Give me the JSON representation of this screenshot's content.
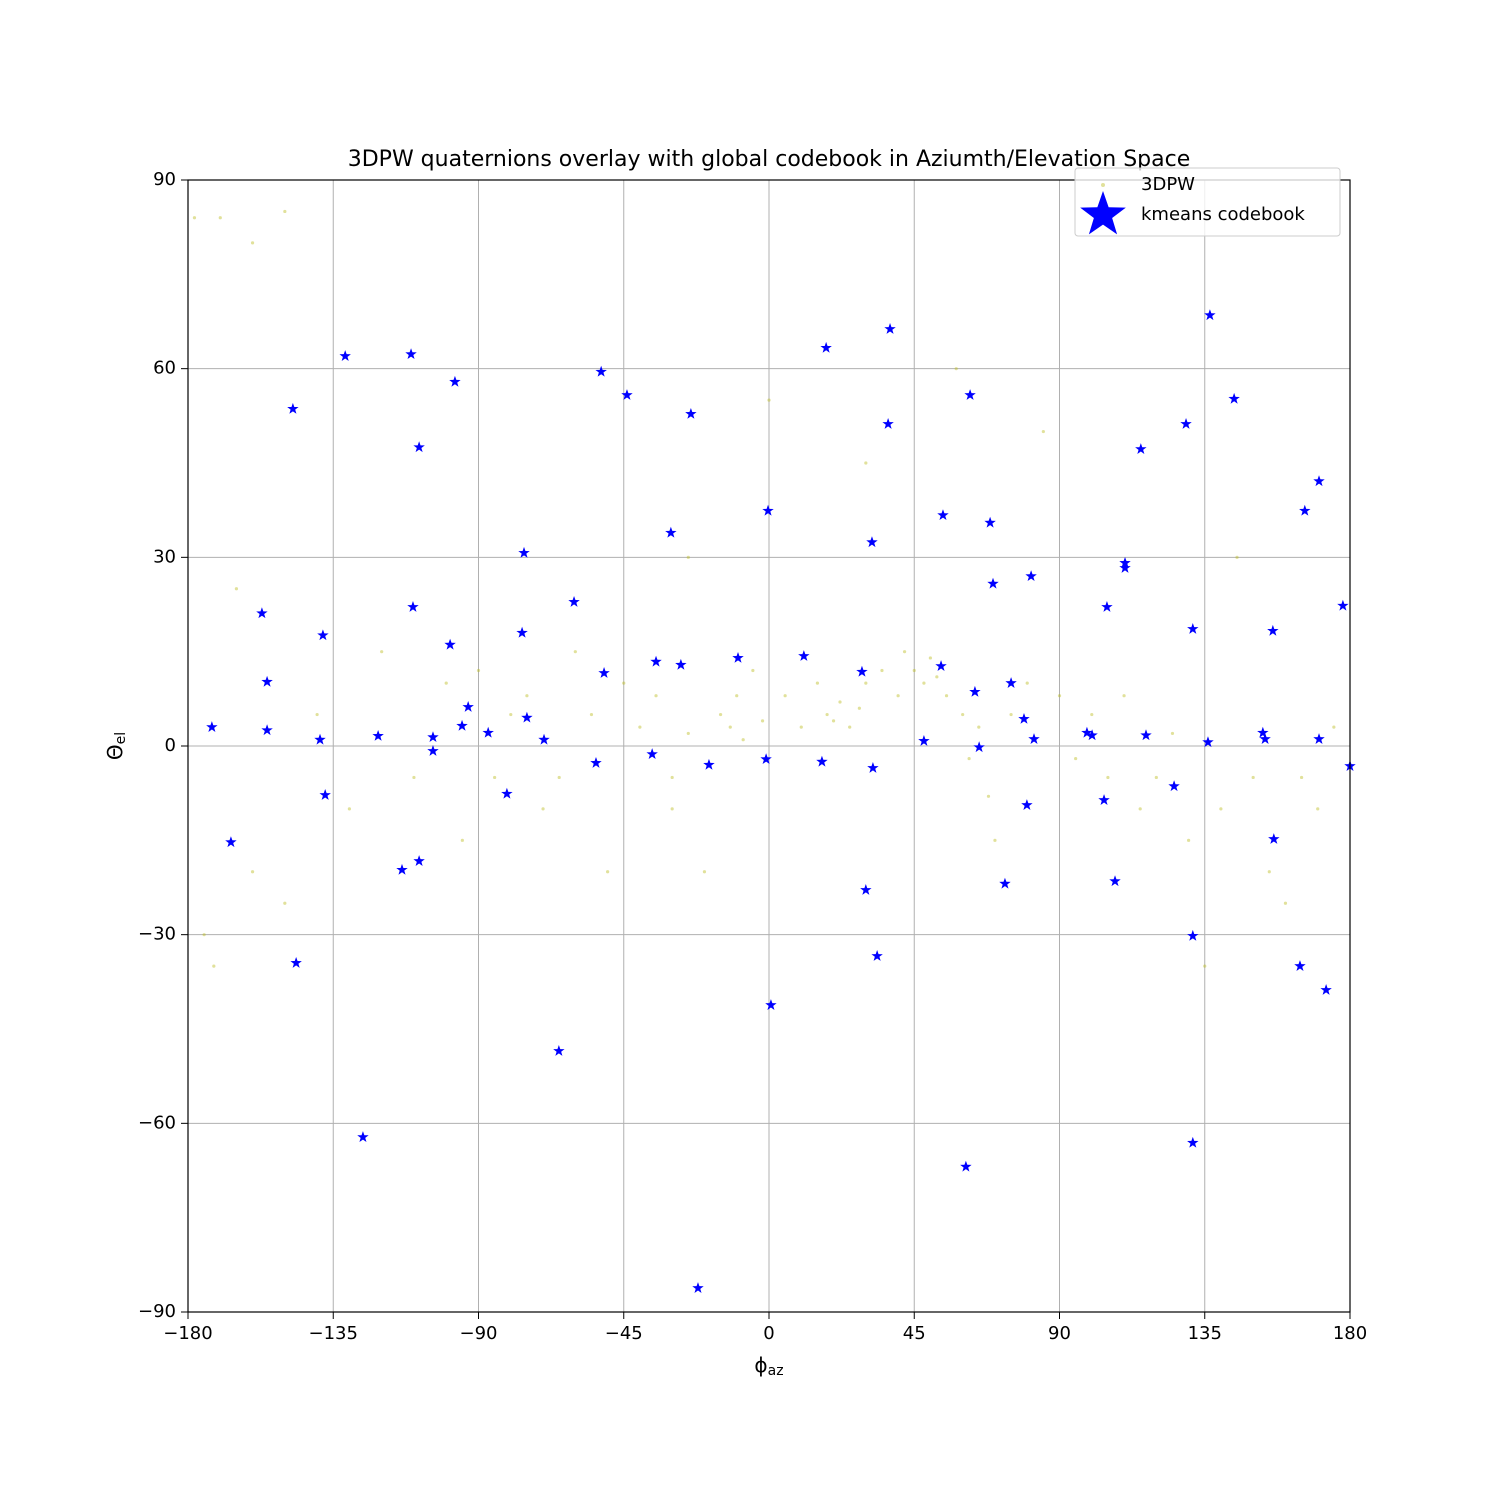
{
  "chart_data": {
    "type": "scatter",
    "title": "3DPW quaternions overlay with global codebook in Aziumth/Elevation Space",
    "xlabel": {
      "symbol": "ϕ",
      "subscript": "az"
    },
    "ylabel": {
      "symbol": "Θ",
      "subscript": "el"
    },
    "xlim": [
      -180,
      180
    ],
    "ylim": [
      -90,
      90
    ],
    "xticks": [
      {
        "value": -180,
        "label": "−180"
      },
      {
        "value": -135,
        "label": "−135"
      },
      {
        "value": -90,
        "label": "−90"
      },
      {
        "value": -45,
        "label": "−45"
      },
      0,
      45,
      90,
      135,
      180
    ],
    "yticks": [
      {
        "value": -90,
        "label": "−90"
      },
      {
        "value": -60,
        "label": "−60"
      },
      {
        "value": -30,
        "label": "−30"
      },
      0,
      30,
      60,
      90
    ],
    "grid": true,
    "legend": "upper right",
    "series": [
      {
        "name": "3DPW",
        "color": "#bcbd22",
        "marker": "dot",
        "x": [
          -178,
          -170,
          -160,
          -150,
          -175,
          -172,
          -165,
          -160,
          -150,
          -140,
          -130,
          -120,
          -110,
          -100,
          -95,
          -90,
          -80,
          -75,
          -70,
          -60,
          -55,
          -50,
          -45,
          -40,
          -35,
          -30,
          -25,
          -20,
          -15,
          -12,
          -10,
          -8,
          -5,
          -2,
          0,
          5,
          10,
          15,
          18,
          20,
          22,
          25,
          28,
          30,
          35,
          40,
          42,
          45,
          48,
          50,
          52,
          55,
          58,
          60,
          62,
          65,
          68,
          70,
          75,
          80,
          85,
          90,
          95,
          100,
          105,
          110,
          115,
          120,
          125,
          130,
          135,
          140,
          145,
          150,
          155,
          160,
          165,
          170,
          175,
          -30,
          -25,
          30,
          -85,
          -65
        ],
        "values": [
          84,
          84,
          80,
          85,
          -30,
          -35,
          25,
          -20,
          -25,
          5,
          -10,
          15,
          -5,
          10,
          -15,
          12,
          5,
          8,
          -10,
          15,
          5,
          -20,
          10,
          3,
          8,
          -5,
          2,
          -20,
          5,
          3,
          8,
          1,
          12,
          4,
          55,
          8,
          3,
          10,
          5,
          4,
          7,
          3,
          6,
          10,
          12,
          8,
          15,
          12,
          10,
          14,
          11,
          8,
          60,
          5,
          -2,
          3,
          -8,
          -15,
          5,
          10,
          50,
          8,
          -2,
          5,
          -5,
          8,
          -10,
          -5,
          2,
          -15,
          -35,
          -10,
          30,
          -5,
          -20,
          -25,
          -5,
          -10,
          3,
          -10,
          30,
          45,
          -5,
          -5
        ]
      },
      {
        "name": "kmeans codebook",
        "color": "#0000ff",
        "marker": "star",
        "x": [
          -172.6,
          -166.7,
          -157.1,
          -155.5,
          -155.5,
          -147.5,
          -146.5,
          -139.1,
          -138.2,
          -137.5,
          -131.3,
          -125.8,
          -121.1,
          -113.7,
          -110.9,
          -110.3,
          -108.4,
          -108.4,
          -104.1,
          -104.1,
          -98.8,
          -97.3,
          -95.1,
          -93.2,
          -87.0,
          -81.2,
          -76.5,
          -75.9,
          -75.0,
          -69.7,
          -65.1,
          -60.4,
          -53.6,
          -52.0,
          -51.1,
          -44.0,
          -36.2,
          -35.0,
          -30.4,
          -27.3,
          -24.2,
          -22.0,
          -18.6,
          -9.6,
          -0.9,
          -0.3,
          0.6,
          10.8,
          16.4,
          17.7,
          28.8,
          30.0,
          31.9,
          32.2,
          33.5,
          36.9,
          37.5,
          48.0,
          53.3,
          53.9,
          61.0,
          62.3,
          63.8,
          65.1,
          68.5,
          69.4,
          73.1,
          75.0,
          79.0,
          79.9,
          81.2,
          82.1,
          98.5,
          100.1,
          103.8,
          104.7,
          107.2,
          110.3,
          110.3,
          115.2,
          116.8,
          125.5,
          129.2,
          131.3,
          131.3,
          131.3,
          136.0,
          136.6,
          144.1,
          153.0,
          153.7,
          156.1,
          156.4,
          164.5,
          166.0,
          170.4,
          170.4,
          172.6,
          177.8,
          180.0
        ],
        "values": [
          3.0,
          -15.3,
          21.1,
          10.2,
          2.5,
          53.6,
          -34.5,
          1.0,
          17.6,
          -7.8,
          62.0,
          -62.2,
          1.6,
          -19.7,
          62.3,
          22.1,
          -18.3,
          47.5,
          1.4,
          -0.8,
          16.1,
          57.9,
          3.2,
          6.2,
          2.1,
          -7.6,
          18.0,
          30.7,
          4.5,
          1.0,
          -48.5,
          22.9,
          -2.7,
          59.5,
          11.6,
          55.8,
          -1.3,
          13.4,
          33.9,
          12.9,
          52.8,
          -86.2,
          -3.0,
          14.0,
          -2.1,
          37.4,
          -41.2,
          14.3,
          -2.5,
          63.3,
          11.8,
          -22.9,
          32.4,
          -3.5,
          -33.4,
          51.2,
          66.3,
          0.8,
          12.7,
          36.7,
          -66.9,
          55.8,
          8.6,
          -0.2,
          35.5,
          25.8,
          -21.9,
          10.0,
          4.3,
          -9.4,
          27.0,
          1.1,
          2.1,
          1.7,
          -8.6,
          22.1,
          -21.5,
          29.1,
          28.3,
          47.2,
          1.7,
          -6.4,
          51.2,
          18.6,
          -30.2,
          -63.1,
          0.6,
          68.5,
          55.2,
          2.1,
          1.1,
          18.3,
          -14.8,
          -35.0,
          37.4,
          42.1,
          1.1,
          -38.8,
          22.3,
          -3.2
        ]
      }
    ]
  }
}
